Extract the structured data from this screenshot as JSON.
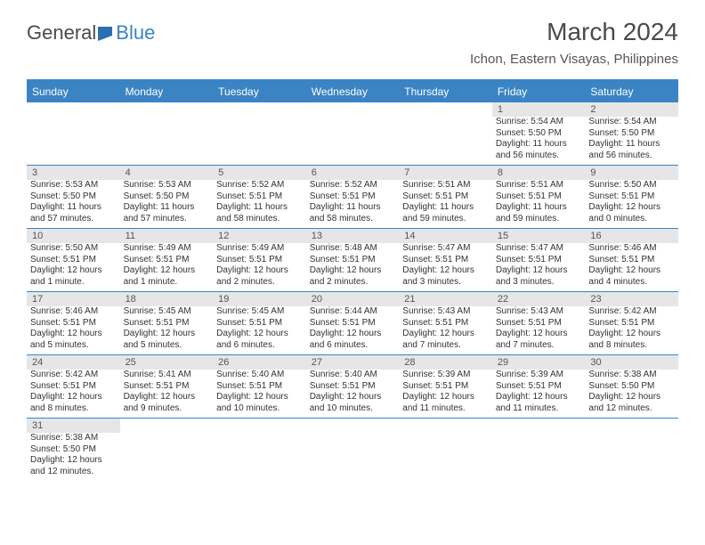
{
  "logo": {
    "general": "Genera",
    "l": "l",
    "blue": "Blue"
  },
  "title": "March 2024",
  "location": "Ichon, Eastern Visayas, Philippines",
  "colors": {
    "header_bg": "#3a84c4",
    "header_text": "#ffffff",
    "daynum_bg": "#e6e6e6",
    "text": "#333333",
    "border": "#3a84c4"
  },
  "day_names": [
    "Sunday",
    "Monday",
    "Tuesday",
    "Wednesday",
    "Thursday",
    "Friday",
    "Saturday"
  ],
  "weeks": [
    [
      {
        "n": "",
        "sr": "",
        "ss": "",
        "dl": ""
      },
      {
        "n": "",
        "sr": "",
        "ss": "",
        "dl": ""
      },
      {
        "n": "",
        "sr": "",
        "ss": "",
        "dl": ""
      },
      {
        "n": "",
        "sr": "",
        "ss": "",
        "dl": ""
      },
      {
        "n": "",
        "sr": "",
        "ss": "",
        "dl": ""
      },
      {
        "n": "1",
        "sr": "Sunrise: 5:54 AM",
        "ss": "Sunset: 5:50 PM",
        "dl": "Daylight: 11 hours and 56 minutes."
      },
      {
        "n": "2",
        "sr": "Sunrise: 5:54 AM",
        "ss": "Sunset: 5:50 PM",
        "dl": "Daylight: 11 hours and 56 minutes."
      }
    ],
    [
      {
        "n": "3",
        "sr": "Sunrise: 5:53 AM",
        "ss": "Sunset: 5:50 PM",
        "dl": "Daylight: 11 hours and 57 minutes."
      },
      {
        "n": "4",
        "sr": "Sunrise: 5:53 AM",
        "ss": "Sunset: 5:50 PM",
        "dl": "Daylight: 11 hours and 57 minutes."
      },
      {
        "n": "5",
        "sr": "Sunrise: 5:52 AM",
        "ss": "Sunset: 5:51 PM",
        "dl": "Daylight: 11 hours and 58 minutes."
      },
      {
        "n": "6",
        "sr": "Sunrise: 5:52 AM",
        "ss": "Sunset: 5:51 PM",
        "dl": "Daylight: 11 hours and 58 minutes."
      },
      {
        "n": "7",
        "sr": "Sunrise: 5:51 AM",
        "ss": "Sunset: 5:51 PM",
        "dl": "Daylight: 11 hours and 59 minutes."
      },
      {
        "n": "8",
        "sr": "Sunrise: 5:51 AM",
        "ss": "Sunset: 5:51 PM",
        "dl": "Daylight: 11 hours and 59 minutes."
      },
      {
        "n": "9",
        "sr": "Sunrise: 5:50 AM",
        "ss": "Sunset: 5:51 PM",
        "dl": "Daylight: 12 hours and 0 minutes."
      }
    ],
    [
      {
        "n": "10",
        "sr": "Sunrise: 5:50 AM",
        "ss": "Sunset: 5:51 PM",
        "dl": "Daylight: 12 hours and 1 minute."
      },
      {
        "n": "11",
        "sr": "Sunrise: 5:49 AM",
        "ss": "Sunset: 5:51 PM",
        "dl": "Daylight: 12 hours and 1 minute."
      },
      {
        "n": "12",
        "sr": "Sunrise: 5:49 AM",
        "ss": "Sunset: 5:51 PM",
        "dl": "Daylight: 12 hours and 2 minutes."
      },
      {
        "n": "13",
        "sr": "Sunrise: 5:48 AM",
        "ss": "Sunset: 5:51 PM",
        "dl": "Daylight: 12 hours and 2 minutes."
      },
      {
        "n": "14",
        "sr": "Sunrise: 5:47 AM",
        "ss": "Sunset: 5:51 PM",
        "dl": "Daylight: 12 hours and 3 minutes."
      },
      {
        "n": "15",
        "sr": "Sunrise: 5:47 AM",
        "ss": "Sunset: 5:51 PM",
        "dl": "Daylight: 12 hours and 3 minutes."
      },
      {
        "n": "16",
        "sr": "Sunrise: 5:46 AM",
        "ss": "Sunset: 5:51 PM",
        "dl": "Daylight: 12 hours and 4 minutes."
      }
    ],
    [
      {
        "n": "17",
        "sr": "Sunrise: 5:46 AM",
        "ss": "Sunset: 5:51 PM",
        "dl": "Daylight: 12 hours and 5 minutes."
      },
      {
        "n": "18",
        "sr": "Sunrise: 5:45 AM",
        "ss": "Sunset: 5:51 PM",
        "dl": "Daylight: 12 hours and 5 minutes."
      },
      {
        "n": "19",
        "sr": "Sunrise: 5:45 AM",
        "ss": "Sunset: 5:51 PM",
        "dl": "Daylight: 12 hours and 6 minutes."
      },
      {
        "n": "20",
        "sr": "Sunrise: 5:44 AM",
        "ss": "Sunset: 5:51 PM",
        "dl": "Daylight: 12 hours and 6 minutes."
      },
      {
        "n": "21",
        "sr": "Sunrise: 5:43 AM",
        "ss": "Sunset: 5:51 PM",
        "dl": "Daylight: 12 hours and 7 minutes."
      },
      {
        "n": "22",
        "sr": "Sunrise: 5:43 AM",
        "ss": "Sunset: 5:51 PM",
        "dl": "Daylight: 12 hours and 7 minutes."
      },
      {
        "n": "23",
        "sr": "Sunrise: 5:42 AM",
        "ss": "Sunset: 5:51 PM",
        "dl": "Daylight: 12 hours and 8 minutes."
      }
    ],
    [
      {
        "n": "24",
        "sr": "Sunrise: 5:42 AM",
        "ss": "Sunset: 5:51 PM",
        "dl": "Daylight: 12 hours and 8 minutes."
      },
      {
        "n": "25",
        "sr": "Sunrise: 5:41 AM",
        "ss": "Sunset: 5:51 PM",
        "dl": "Daylight: 12 hours and 9 minutes."
      },
      {
        "n": "26",
        "sr": "Sunrise: 5:40 AM",
        "ss": "Sunset: 5:51 PM",
        "dl": "Daylight: 12 hours and 10 minutes."
      },
      {
        "n": "27",
        "sr": "Sunrise: 5:40 AM",
        "ss": "Sunset: 5:51 PM",
        "dl": "Daylight: 12 hours and 10 minutes."
      },
      {
        "n": "28",
        "sr": "Sunrise: 5:39 AM",
        "ss": "Sunset: 5:51 PM",
        "dl": "Daylight: 12 hours and 11 minutes."
      },
      {
        "n": "29",
        "sr": "Sunrise: 5:39 AM",
        "ss": "Sunset: 5:51 PM",
        "dl": "Daylight: 12 hours and 11 minutes."
      },
      {
        "n": "30",
        "sr": "Sunrise: 5:38 AM",
        "ss": "Sunset: 5:50 PM",
        "dl": "Daylight: 12 hours and 12 minutes."
      }
    ],
    [
      {
        "n": "31",
        "sr": "Sunrise: 5:38 AM",
        "ss": "Sunset: 5:50 PM",
        "dl": "Daylight: 12 hours and 12 minutes."
      },
      {
        "n": "",
        "sr": "",
        "ss": "",
        "dl": ""
      },
      {
        "n": "",
        "sr": "",
        "ss": "",
        "dl": ""
      },
      {
        "n": "",
        "sr": "",
        "ss": "",
        "dl": ""
      },
      {
        "n": "",
        "sr": "",
        "ss": "",
        "dl": ""
      },
      {
        "n": "",
        "sr": "",
        "ss": "",
        "dl": ""
      },
      {
        "n": "",
        "sr": "",
        "ss": "",
        "dl": ""
      }
    ]
  ]
}
